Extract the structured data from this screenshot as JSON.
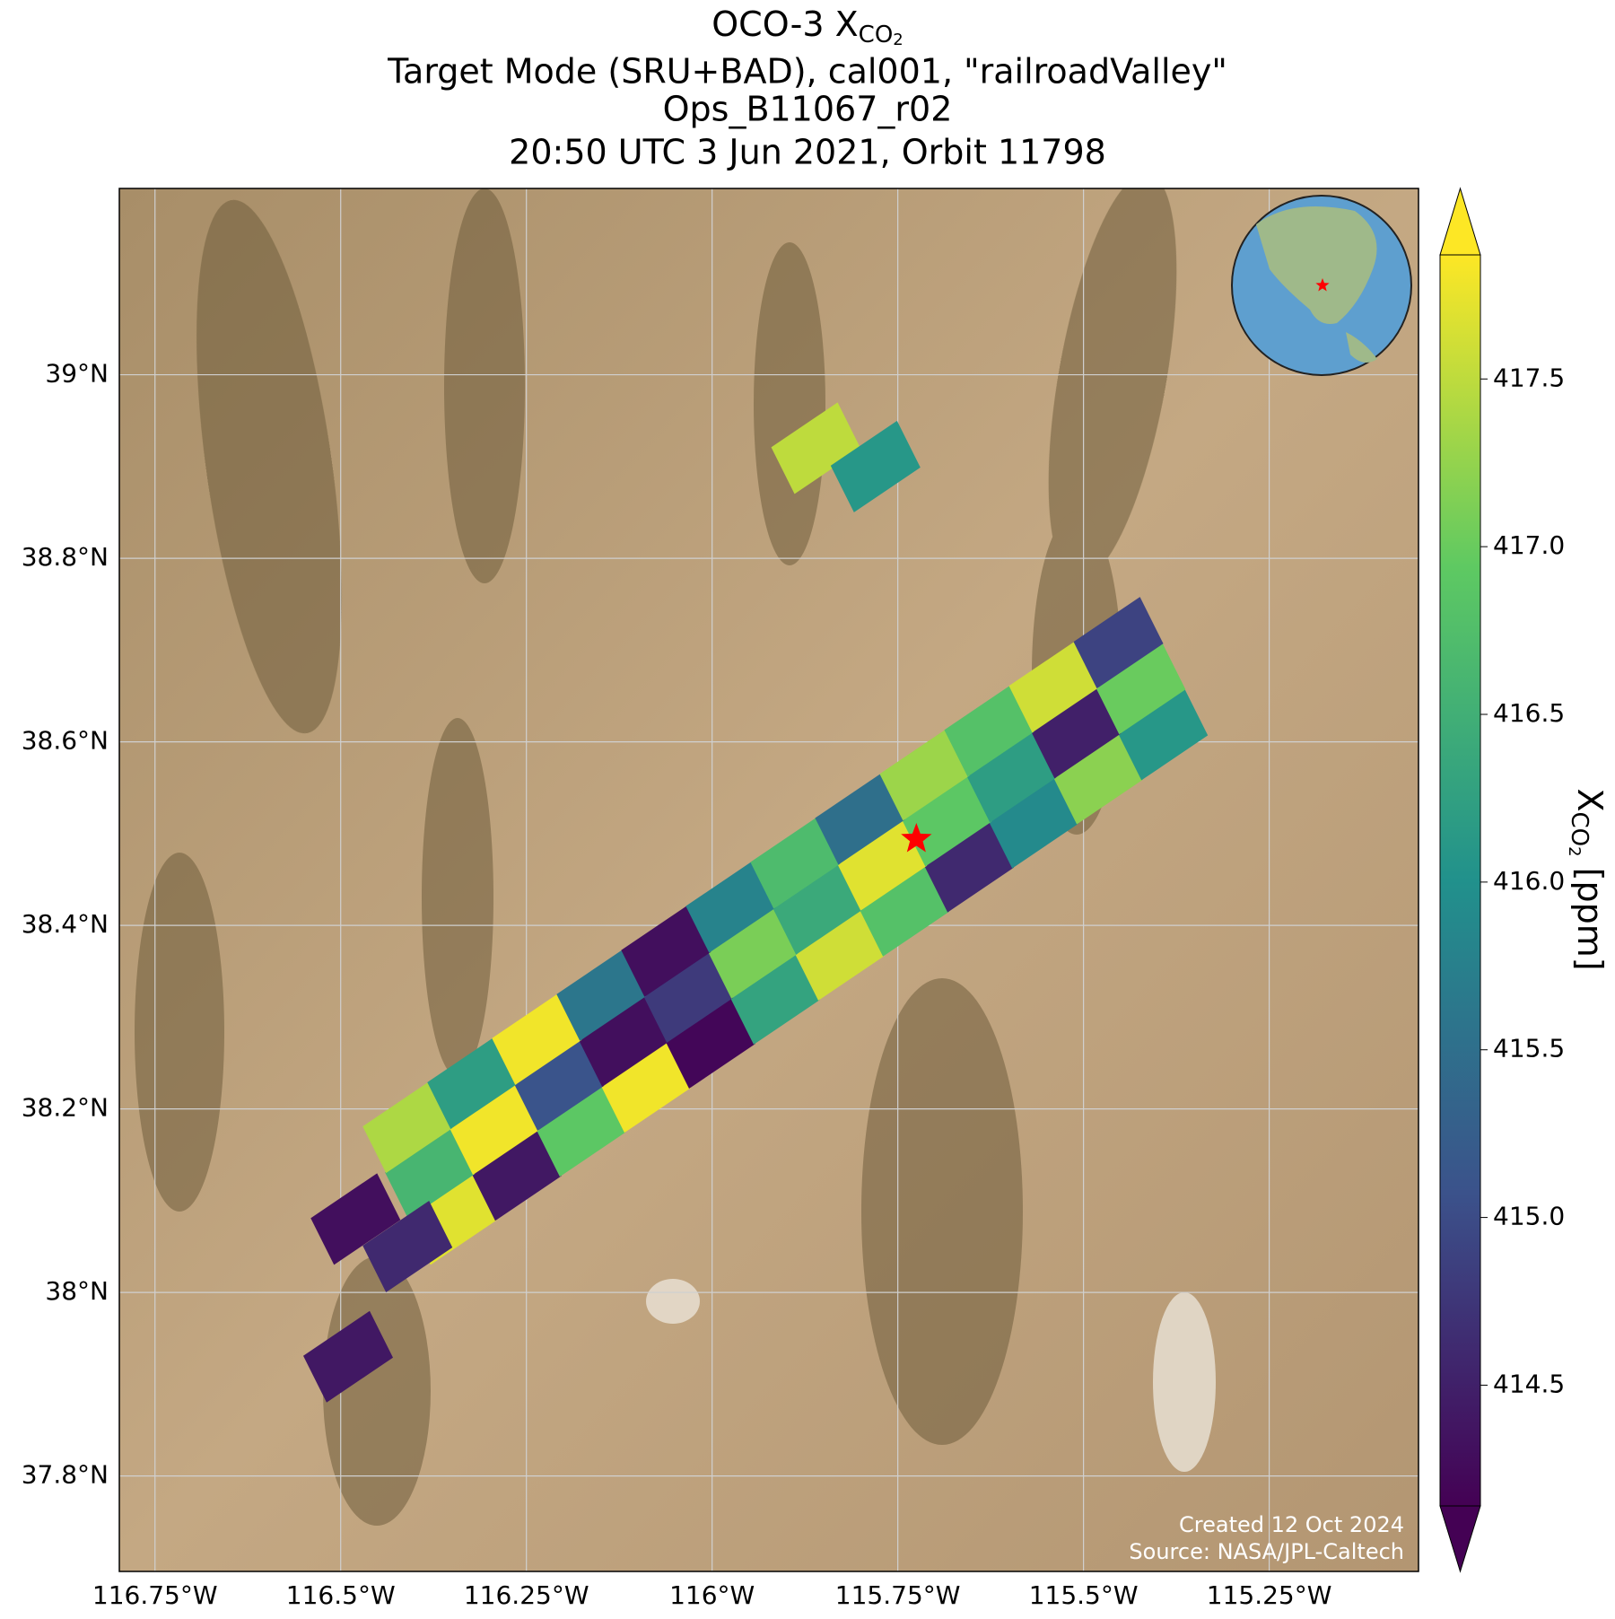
{
  "chart_data": {
    "type": "map",
    "title": {
      "line1": {
        "text": "OCO-3 X",
        "sub": "CO",
        "subsub": "2"
      },
      "line2": "Target Mode (SRU+BAD), cal001, \"railroadValley\"",
      "line3": "Ops_B11067_r02",
      "line4": "20:50 UTC 3 Jun 2021, Orbit 11798"
    },
    "xlim": [
      -116.798,
      -115.049
    ],
    "ylim": [
      37.696,
      39.203
    ],
    "xticks": [
      {
        "value": -116.75,
        "label": "116.75°W"
      },
      {
        "value": -116.5,
        "label": "116.5°W"
      },
      {
        "value": -116.25,
        "label": "116.25°W"
      },
      {
        "value": -116,
        "label": "116°W"
      },
      {
        "value": -115.75,
        "label": "115.75°W"
      },
      {
        "value": -115.5,
        "label": "115.5°W"
      },
      {
        "value": -115.25,
        "label": "115.25°W"
      }
    ],
    "yticks": [
      {
        "value": 37.8,
        "label": "37.8°N"
      },
      {
        "value": 38,
        "label": "38°N"
      },
      {
        "value": 38.2,
        "label": "38.2°N"
      },
      {
        "value": 38.4,
        "label": "38.4°N"
      },
      {
        "value": 38.6,
        "label": "38.6°N"
      },
      {
        "value": 38.8,
        "label": "38.8°N"
      },
      {
        "value": 39,
        "label": "39°N"
      }
    ],
    "grid": true,
    "site": {
      "lon": -115.725,
      "lat": 38.494,
      "color": "#ff0000"
    },
    "footprints": {
      "lon": [
        -116.35,
        -116.263,
        -116.176,
        -116.089,
        -116.002,
        -115.915,
        -115.828,
        -115.741,
        -115.654,
        -115.567,
        -115.48,
        -115.393,
        -116.38,
        -116.293,
        -116.206,
        -116.119,
        -116.032,
        -115.945,
        -115.858,
        -115.771,
        -115.684,
        -115.597,
        -115.51,
        -115.423,
        -116.41,
        -116.323,
        -116.236,
        -116.149,
        -116.062,
        -115.975,
        -115.888,
        -115.801,
        -115.714,
        -115.627,
        -115.54,
        -115.453,
        -115.86,
        -115.78,
        -116.48,
        -116.41,
        -116.49
      ],
      "lat": [
        38.08,
        38.128,
        38.176,
        38.224,
        38.272,
        38.32,
        38.368,
        38.416,
        38.464,
        38.512,
        38.56,
        38.608,
        38.13,
        38.178,
        38.226,
        38.274,
        38.322,
        38.37,
        38.418,
        38.466,
        38.514,
        38.562,
        38.61,
        38.658,
        38.18,
        38.228,
        38.276,
        38.324,
        38.372,
        38.42,
        38.468,
        38.516,
        38.564,
        38.612,
        38.66,
        38.708,
        38.92,
        38.9,
        38.08,
        38.05,
        37.93
      ],
      "values": [
        417.7,
        414.4,
        416.9,
        417.8,
        414.2,
        416.3,
        417.6,
        416.8,
        414.6,
        415.9,
        417.2,
        416.1,
        416.6,
        417.8,
        415.1,
        414.3,
        414.8,
        417.1,
        416.4,
        417.7,
        416.9,
        416.2,
        414.5,
        417.0,
        417.4,
        416.2,
        417.8,
        415.6,
        414.3,
        415.8,
        416.7,
        415.5,
        417.3,
        416.8,
        417.6,
        414.9,
        417.5,
        416.1,
        414.3,
        414.6,
        414.4
      ]
    },
    "colorbar": {
      "clim": [
        414.14,
        417.87
      ],
      "label": {
        "text": "X",
        "sub": "CO",
        "subsub": "2",
        "unit": " [ppm]"
      },
      "ticks": [
        414.5,
        {
          "value": 415,
          "label": "415.0"
        },
        415.5,
        {
          "value": 416,
          "label": "416.0"
        },
        416.5,
        {
          "value": 417,
          "label": "417.0"
        },
        417.5
      ]
    },
    "annotations": [
      "Created 12 Oct 2024",
      "Source: NASA/JPL-Caltech"
    ]
  }
}
